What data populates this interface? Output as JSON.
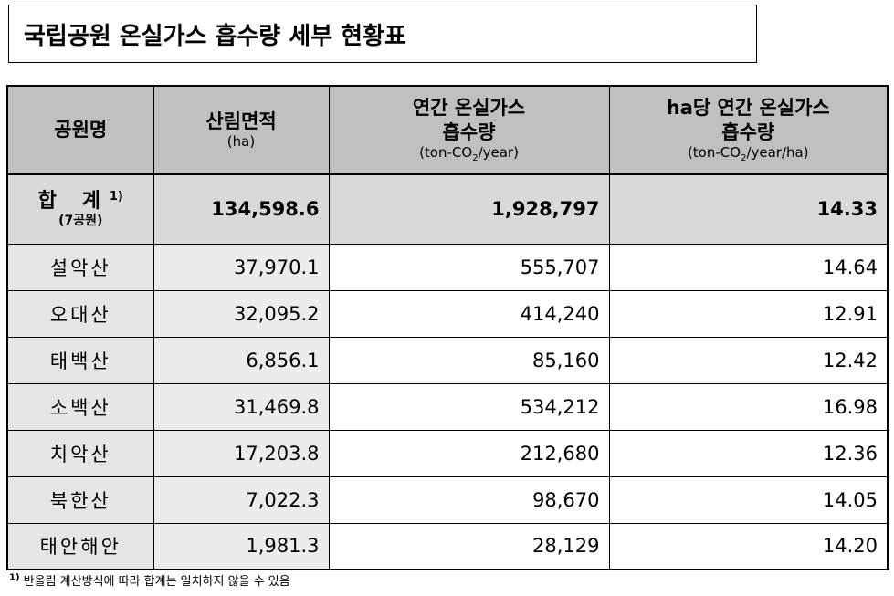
{
  "title": "국립공원 온실가스 흡수량 세부 현황표",
  "headers": {
    "park_name": "공원명",
    "forest_area": {
      "label": "산림면적",
      "unit": "(ha)"
    },
    "annual": {
      "line1": "연간 온실가스",
      "line2": "흡수량",
      "unit_pre": "(ton-CO",
      "unit_sub": "2",
      "unit_post": "/year)"
    },
    "per_ha": {
      "line1": "ha당 연간 온실가스",
      "line2": "흡수량",
      "unit_pre": "(ton-CO",
      "unit_sub": "2",
      "unit_post": "/year/ha)"
    }
  },
  "total": {
    "label": "합 계",
    "sup": "1)",
    "sub": "(7공원)",
    "forest_area": "134,598.6",
    "annual": "1,928,797",
    "per_ha": "14.33"
  },
  "rows": [
    {
      "name": "설악산",
      "forest_area": "37,970.1",
      "annual": "555,707",
      "per_ha": "14.64"
    },
    {
      "name": "오대산",
      "forest_area": "32,095.2",
      "annual": "414,240",
      "per_ha": "12.91"
    },
    {
      "name": "태백산",
      "forest_area": "6,856.1",
      "annual": "85,160",
      "per_ha": "12.42"
    },
    {
      "name": "소백산",
      "forest_area": "31,469.8",
      "annual": "534,212",
      "per_ha": "16.98"
    },
    {
      "name": "치악산",
      "forest_area": "17,203.8",
      "annual": "212,680",
      "per_ha": "12.36"
    },
    {
      "name": "북한산",
      "forest_area": "7,022.3",
      "annual": "98,670",
      "per_ha": "14.05"
    },
    {
      "name": "태안해안",
      "forest_area": "1,981.3",
      "annual": "28,129",
      "per_ha": "14.20"
    }
  ],
  "footnote": {
    "sup": "1)",
    "text": "반올림 계산방식에 따라 합계는 일치하지 않을 수 있음"
  }
}
